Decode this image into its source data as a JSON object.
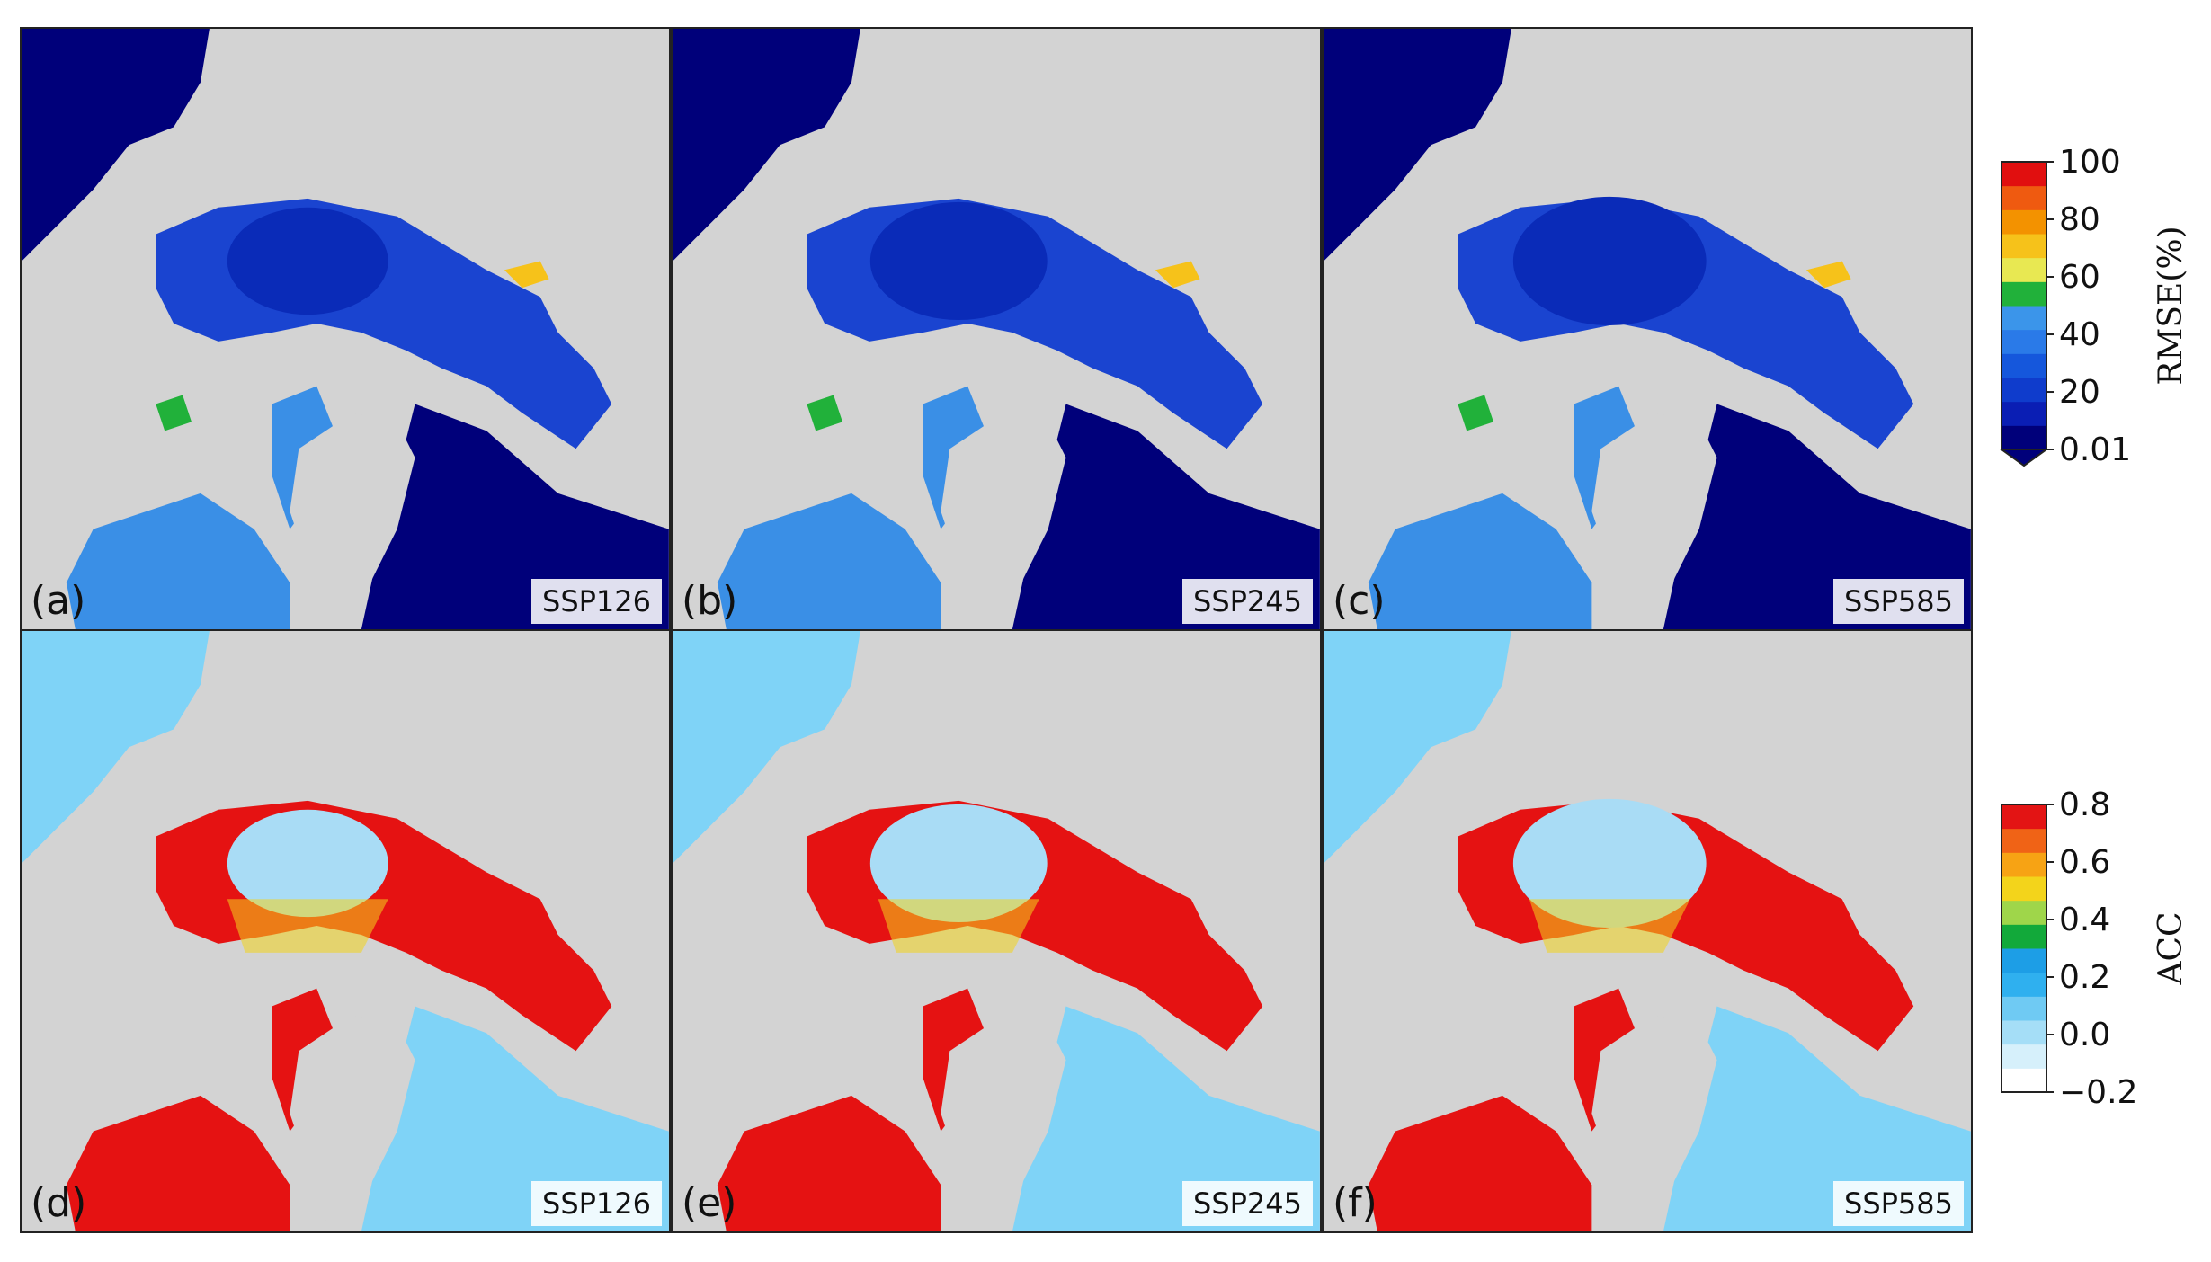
{
  "chart_data": [
    {
      "type": "heatmap",
      "metric": "RMSE(%)",
      "colorbar": {
        "title": "RMSE(%)",
        "ticks": [
          "100",
          "80",
          "60",
          "40",
          "20",
          "0.01"
        ],
        "tick_values": [
          100,
          80,
          60,
          40,
          20,
          0.01
        ],
        "range": [
          0.01,
          100
        ],
        "extend": "min",
        "colors": [
          "#00007a",
          "#0a1eb4",
          "#0f3ccc",
          "#1557dc",
          "#2a7ae8",
          "#3b95ea",
          "#21b13a",
          "#e8e852",
          "#f6c21a",
          "#f39200",
          "#ef5a10",
          "#e10f0f"
        ]
      },
      "panels": [
        {
          "label": "(a)",
          "scenario": "SSP126"
        },
        {
          "label": "(b)",
          "scenario": "SSP245"
        },
        {
          "label": "(c)",
          "scenario": "SSP585"
        }
      ]
    },
    {
      "type": "heatmap",
      "metric": "ACC",
      "colorbar": {
        "title": "ACC",
        "ticks": [
          "0.8",
          "0.6",
          "0.4",
          "0.2",
          "0.0",
          "−0.2"
        ],
        "tick_values": [
          0.8,
          0.6,
          0.4,
          0.2,
          0.0,
          -0.2
        ],
        "range": [
          -0.2,
          0.8
        ],
        "colors": [
          "#ffffff",
          "#d6f0fb",
          "#a5def7",
          "#6fcaf3",
          "#2fb0ef",
          "#1d9ee6",
          "#12a93a",
          "#9fd64a",
          "#f3d41b",
          "#f7a314",
          "#f06316",
          "#e31414"
        ]
      },
      "panels": [
        {
          "label": "(d)",
          "scenario": "SSP126"
        },
        {
          "label": "(e)",
          "scenario": "SSP245"
        },
        {
          "label": "(f)",
          "scenario": "SSP585"
        }
      ]
    }
  ],
  "style": {
    "land": "#d3d3d3",
    "rmse_ocean_low": "#00007a",
    "rmse_arctic": "#1a44d0",
    "rmse_shelf": "#3a8fe6",
    "acc_ocean": "#7fd3f7",
    "acc_high": "#e51212",
    "acc_center": "#a9dcf5"
  }
}
